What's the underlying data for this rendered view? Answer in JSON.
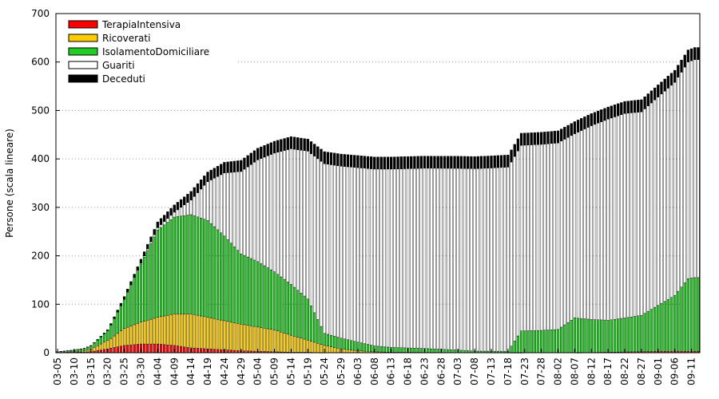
{
  "chart_data": {
    "type": "bar",
    "stacked": true,
    "ylabel": "Persone (scala lineare)",
    "ylim": [
      0,
      700
    ],
    "yticks": [
      0,
      100,
      200,
      300,
      400,
      500,
      600,
      700
    ],
    "grid": "dotted horizontal",
    "legend_position": "top-left",
    "start_date": "2020-03-05",
    "end_date": "2020-09-13",
    "x_tick_labels": [
      "03-05",
      "03-10",
      "03-15",
      "03-20",
      "03-25",
      "03-30",
      "04-04",
      "04-09",
      "04-14",
      "04-19",
      "04-24",
      "04-29",
      "05-04",
      "05-09",
      "05-14",
      "05-19",
      "05-24",
      "05-29",
      "06-03",
      "06-08",
      "06-13",
      "06-18",
      "06-23",
      "06-28",
      "07-03",
      "07-08",
      "07-13",
      "07-18",
      "07-23",
      "07-28",
      "08-02",
      "08-07",
      "08-12",
      "08-17",
      "08-22",
      "08-27",
      "09-01",
      "09-06",
      "09-11"
    ],
    "series": [
      {
        "name": "TerapiaIntensiva",
        "color": "#ff0000",
        "anchors": [
          [
            0,
            0
          ],
          [
            10,
            2
          ],
          [
            15,
            8
          ],
          [
            20,
            15
          ],
          [
            25,
            18
          ],
          [
            30,
            18
          ],
          [
            35,
            15
          ],
          [
            40,
            10
          ],
          [
            45,
            8
          ],
          [
            50,
            6
          ],
          [
            55,
            4
          ],
          [
            60,
            3
          ],
          [
            65,
            2
          ],
          [
            70,
            1
          ],
          [
            75,
            1
          ],
          [
            80,
            0
          ],
          [
            120,
            0
          ],
          [
            155,
            0
          ],
          [
            182,
            3
          ],
          [
            191,
            3
          ]
        ]
      },
      {
        "name": "Ricoverati",
        "color": "#ffcc00",
        "anchors": [
          [
            0,
            0
          ],
          [
            8,
            2
          ],
          [
            12,
            10
          ],
          [
            16,
            20
          ],
          [
            20,
            35
          ],
          [
            25,
            45
          ],
          [
            30,
            55
          ],
          [
            35,
            65
          ],
          [
            40,
            70
          ],
          [
            45,
            65
          ],
          [
            50,
            60
          ],
          [
            55,
            55
          ],
          [
            60,
            50
          ],
          [
            65,
            45
          ],
          [
            70,
            35
          ],
          [
            75,
            25
          ],
          [
            80,
            15
          ],
          [
            85,
            8
          ],
          [
            90,
            4
          ],
          [
            95,
            2
          ],
          [
            100,
            1
          ],
          [
            140,
            0
          ],
          [
            182,
            0
          ],
          [
            191,
            0
          ]
        ]
      },
      {
        "name": "IsolamentoDomiciliare",
        "color": "#22cc22",
        "anchors": [
          [
            0,
            2
          ],
          [
            5,
            3
          ],
          [
            10,
            6
          ],
          [
            15,
            20
          ],
          [
            20,
            60
          ],
          [
            25,
            120
          ],
          [
            30,
            180
          ],
          [
            35,
            200
          ],
          [
            40,
            205
          ],
          [
            45,
            200
          ],
          [
            50,
            175
          ],
          [
            55,
            145
          ],
          [
            60,
            135
          ],
          [
            65,
            120
          ],
          [
            70,
            105
          ],
          [
            75,
            85
          ],
          [
            80,
            25
          ],
          [
            85,
            22
          ],
          [
            90,
            18
          ],
          [
            95,
            12
          ],
          [
            100,
            10
          ],
          [
            110,
            8
          ],
          [
            120,
            5
          ],
          [
            125,
            3
          ],
          [
            133,
            3
          ],
          [
            135,
            3
          ],
          [
            139,
            45
          ],
          [
            145,
            46
          ],
          [
            150,
            48
          ],
          [
            155,
            72
          ],
          [
            160,
            68
          ],
          [
            165,
            66
          ],
          [
            170,
            70
          ],
          [
            175,
            75
          ],
          [
            180,
            95
          ],
          [
            185,
            115
          ],
          [
            189,
            150
          ],
          [
            191,
            152
          ]
        ]
      },
      {
        "name": "Guariti",
        "color": "#ffffff",
        "anchors": [
          [
            0,
            0
          ],
          [
            15,
            0
          ],
          [
            25,
            2
          ],
          [
            30,
            5
          ],
          [
            35,
            10
          ],
          [
            40,
            30
          ],
          [
            45,
            80
          ],
          [
            50,
            130
          ],
          [
            55,
            170
          ],
          [
            60,
            210
          ],
          [
            65,
            245
          ],
          [
            70,
            280
          ],
          [
            75,
            305
          ],
          [
            80,
            350
          ],
          [
            85,
            355
          ],
          [
            90,
            360
          ],
          [
            95,
            365
          ],
          [
            100,
            368
          ],
          [
            110,
            372
          ],
          [
            120,
            375
          ],
          [
            130,
            378
          ],
          [
            135,
            380
          ],
          [
            136,
            380
          ],
          [
            139,
            383
          ],
          [
            145,
            384
          ],
          [
            150,
            385
          ],
          [
            155,
            380
          ],
          [
            160,
            400
          ],
          [
            165,
            415
          ],
          [
            170,
            422
          ],
          [
            175,
            420
          ],
          [
            180,
            430
          ],
          [
            185,
            440
          ],
          [
            189,
            447
          ],
          [
            191,
            450
          ]
        ]
      },
      {
        "name": "Deceduti",
        "color": "#000000",
        "anchors": [
          [
            0,
            0
          ],
          [
            10,
            1
          ],
          [
            15,
            2
          ],
          [
            20,
            5
          ],
          [
            25,
            8
          ],
          [
            30,
            12
          ],
          [
            35,
            15
          ],
          [
            40,
            18
          ],
          [
            45,
            20
          ],
          [
            50,
            22
          ],
          [
            55,
            23
          ],
          [
            60,
            24
          ],
          [
            70,
            25
          ],
          [
            191,
            25
          ]
        ]
      }
    ]
  }
}
